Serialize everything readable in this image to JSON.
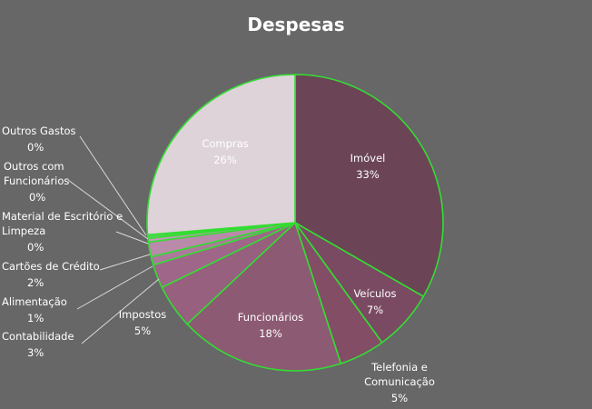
{
  "chart_data": {
    "type": "pie",
    "title": "Despesas",
    "start_angle_deg": 0,
    "direction": "clockwise",
    "slice_border_color": "#33dd33",
    "background": "#676767",
    "slices": [
      {
        "name": "Imóvel",
        "value": 33.3,
        "percent_label": "33%",
        "color": "#6b4556"
      },
      {
        "name": "Veículos",
        "value": 6.7,
        "percent_label": "7%",
        "color": "#7a4a62"
      },
      {
        "name": "Telefonia e Comunicação",
        "value": 5.0,
        "percent_label": "5%",
        "color": "#834d66"
      },
      {
        "name": "Funcionários",
        "value": 18.0,
        "percent_label": "18%",
        "color": "#8c5a72"
      },
      {
        "name": "Impostos",
        "value": 4.8,
        "percent_label": "5%",
        "color": "#96607e"
      },
      {
        "name": "Contabilidade",
        "value": 2.6,
        "percent_label": "3%",
        "color": "#a0668a"
      },
      {
        "name": "Alimentação",
        "value": 0.9,
        "percent_label": "1%",
        "color": "#ad7a9c"
      },
      {
        "name": "Cartões de Crédito",
        "value": 1.6,
        "percent_label": "2%",
        "color": "#b98aa9"
      },
      {
        "name": "Material de Escritório e Limpeza",
        "value": 0.4,
        "percent_label": "0%",
        "color": "#c49cb6"
      },
      {
        "name": "Outros com Funcionários",
        "value": 0.2,
        "percent_label": "0%",
        "color": "#d0b1c4"
      },
      {
        "name": "Outros Gastos",
        "value": 0.2,
        "percent_label": "0%",
        "color": "#dbc4d2"
      },
      {
        "name": "Compras",
        "value": 26.3,
        "percent_label": "26%",
        "color": "#ded3d8"
      }
    ]
  }
}
